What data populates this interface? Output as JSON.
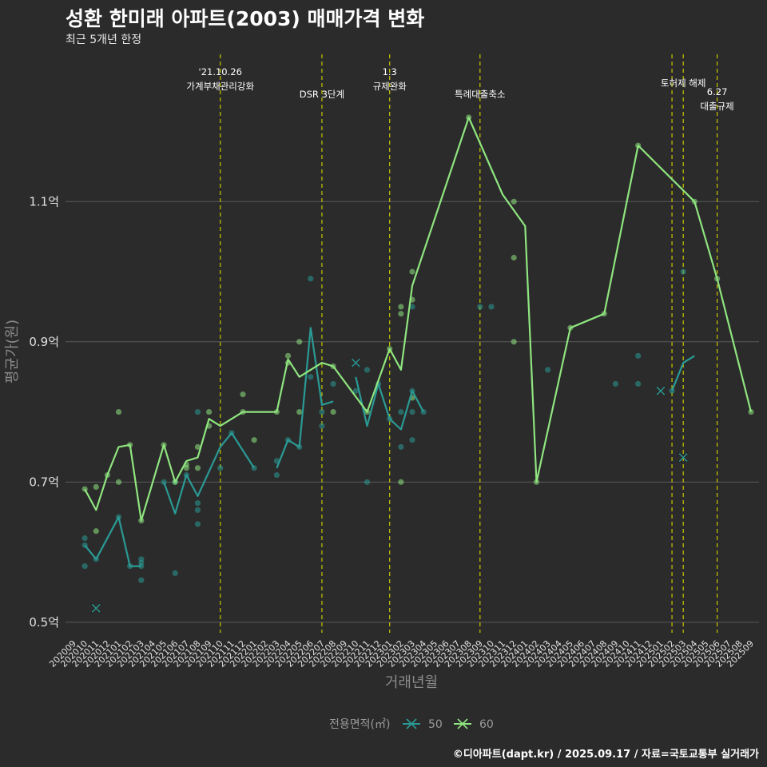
{
  "title": "성환 한미래 아파트(2003) 매매가격 변화",
  "subtitle": "최근 5개년 한정",
  "caption": "©디아파트(dapt.kr) / 2025.09.17 / 자료=국토교통부 실거래가",
  "colors": {
    "background": "#2b2b2b",
    "grid": "#5a5a5a",
    "event_line": "#c8c800",
    "s50": "#2a9a95",
    "s60": "#8fe57f"
  },
  "chart_data": {
    "type": "line",
    "xlabel": "거래년월",
    "ylabel": "평균가(원)",
    "ylim": [
      0.485,
      1.31
    ],
    "y_unit": "억",
    "yticks": [
      0.5,
      0.7,
      0.9,
      1.1
    ],
    "ytick_labels": [
      "0.5억",
      "0.7억",
      "0.9억",
      "1.1억"
    ],
    "x_labels": [
      "202009",
      "202010",
      "202011",
      "202012",
      "202101",
      "202102",
      "202103",
      "202104",
      "202105",
      "202106",
      "202107",
      "202108",
      "202109",
      "202110",
      "202111",
      "202112",
      "202201",
      "202202",
      "202203",
      "202204",
      "202205",
      "202206",
      "202207",
      "202208",
      "202209",
      "202210",
      "202211",
      "202212",
      "202301",
      "202302",
      "202303",
      "202304",
      "202305",
      "202306",
      "202307",
      "202308",
      "202309",
      "202310",
      "202311",
      "202312",
      "202401",
      "202402",
      "202403",
      "202404",
      "202405",
      "202406",
      "202407",
      "202408",
      "202409",
      "202410",
      "202411",
      "202412",
      "202501",
      "202502",
      "202503",
      "202504",
      "202505",
      "202506",
      "202507",
      "202508",
      "202509"
    ],
    "legend": {
      "title": "전용면적(㎡)",
      "position": "bottom"
    },
    "series": [
      {
        "name": "50",
        "color": "#2a9a95",
        "line": [
          [
            "202010",
            0.61
          ],
          [
            "202011",
            0.59
          ],
          [
            "202101",
            0.65
          ],
          [
            "202102",
            0.58
          ],
          [
            "202103",
            0.58
          ],
          null,
          [
            "202105",
            0.7
          ],
          [
            "202106",
            0.655
          ],
          [
            "202107",
            0.71
          ],
          [
            "202108",
            0.68
          ],
          [
            "202110",
            0.75
          ],
          [
            "202111",
            0.77
          ],
          [
            "202201",
            0.72
          ],
          null,
          [
            "202203",
            0.72
          ],
          [
            "202204",
            0.76
          ],
          [
            "202205",
            0.75
          ],
          [
            "202206",
            0.92
          ],
          [
            "202207",
            0.81
          ],
          [
            "202208",
            0.815
          ],
          null,
          [
            "202210",
            0.85
          ],
          [
            "202211",
            0.78
          ],
          [
            "202212",
            0.84
          ],
          [
            "202301",
            0.79
          ],
          [
            "202302",
            0.775
          ],
          [
            "202303",
            0.83
          ],
          [
            "202304",
            0.8
          ],
          null,
          [
            "202502",
            0.83
          ],
          [
            "202503",
            0.87
          ],
          [
            "202504",
            0.88
          ]
        ],
        "points": [
          [
            "202010",
            0.62
          ],
          [
            "202010",
            0.61
          ],
          [
            "202010",
            0.58
          ],
          [
            "202011",
            0.59
          ],
          [
            "202101",
            0.65
          ],
          [
            "202102",
            0.58
          ],
          [
            "202103",
            0.59
          ],
          [
            "202103",
            0.58
          ],
          [
            "202103",
            0.56
          ],
          [
            "202103",
            0.585
          ],
          [
            "202105",
            0.7
          ],
          [
            "202106",
            0.57
          ],
          [
            "202106",
            0.7
          ],
          [
            "202107",
            0.71
          ],
          [
            "202108",
            0.67
          ],
          [
            "202108",
            0.64
          ],
          [
            "202108",
            0.66
          ],
          [
            "202108",
            0.8
          ],
          [
            "202110",
            0.72
          ],
          [
            "202111",
            0.77
          ],
          [
            "202201",
            0.72
          ],
          [
            "202203",
            0.73
          ],
          [
            "202203",
            0.71
          ],
          [
            "202204",
            0.76
          ],
          [
            "202205",
            0.75
          ],
          [
            "202206",
            0.99
          ],
          [
            "202206",
            0.85
          ],
          [
            "202207",
            0.78
          ],
          [
            "202207",
            0.8
          ],
          [
            "202208",
            0.84
          ],
          [
            "202210",
            0.83
          ],
          [
            "202211",
            0.86
          ],
          [
            "202211",
            0.7
          ],
          [
            "202212",
            0.84
          ],
          [
            "202301",
            0.79
          ],
          [
            "202302",
            0.75
          ],
          [
            "202302",
            0.8
          ],
          [
            "202303",
            0.83
          ],
          [
            "202303",
            0.76
          ],
          [
            "202303",
            0.8
          ],
          [
            "202304",
            0.8
          ],
          [
            "202303",
            0.95
          ],
          [
            "202309",
            0.95
          ],
          [
            "202310",
            0.95
          ],
          [
            "202403",
            0.86
          ],
          [
            "202409",
            0.84
          ],
          [
            "202411",
            0.88
          ],
          [
            "202411",
            0.84
          ],
          [
            "202502",
            0.83
          ],
          [
            "202503",
            1.0
          ]
        ],
        "crosses": [
          [
            "202011",
            0.52
          ],
          [
            "202210",
            0.87
          ],
          [
            "202501",
            0.83
          ],
          [
            "202503",
            0.735
          ]
        ]
      },
      {
        "name": "60",
        "color": "#8fe57f",
        "line": [
          [
            "202010",
            0.69
          ],
          [
            "202011",
            0.66
          ],
          [
            "202012",
            0.71
          ],
          [
            "202101",
            0.75
          ],
          [
            "202102",
            0.753
          ],
          [
            "202103",
            0.645
          ],
          [
            "202105",
            0.753
          ],
          [
            "202106",
            0.7
          ],
          [
            "202107",
            0.73
          ],
          [
            "202108",
            0.735
          ],
          [
            "202109",
            0.79
          ],
          [
            "202110",
            0.78
          ],
          [
            "202112",
            0.8
          ],
          [
            "202203",
            0.8
          ],
          [
            "202204",
            0.875
          ],
          [
            "202205",
            0.85
          ],
          [
            "202207",
            0.87
          ],
          [
            "202208",
            0.865
          ],
          [
            "202211",
            0.8
          ],
          [
            "202301",
            0.89
          ],
          [
            "202302",
            0.86
          ],
          [
            "202303",
            0.98
          ],
          [
            "202308",
            1.22
          ],
          [
            "202311",
            1.11
          ],
          [
            "202401",
            1.065
          ],
          [
            "202402",
            0.7
          ],
          [
            "202405",
            0.92
          ],
          [
            "202408",
            0.94
          ],
          [
            "202411",
            1.18
          ],
          [
            "202504",
            1.1
          ],
          [
            "202506",
            0.99
          ],
          [
            "202509",
            0.8
          ]
        ],
        "points": [
          [
            "202010",
            0.69
          ],
          [
            "202011",
            0.693
          ],
          [
            "202011",
            0.63
          ],
          [
            "202012",
            0.71
          ],
          [
            "202101",
            0.8
          ],
          [
            "202101",
            0.7
          ],
          [
            "202102",
            0.753
          ],
          [
            "202103",
            0.645
          ],
          [
            "202105",
            0.753
          ],
          [
            "202106",
            0.7
          ],
          [
            "202107",
            0.725
          ],
          [
            "202107",
            0.72
          ],
          [
            "202108",
            0.72
          ],
          [
            "202108",
            0.75
          ],
          [
            "202109",
            0.8
          ],
          [
            "202109",
            0.78
          ],
          [
            "202112",
            0.825
          ],
          [
            "202112",
            0.8
          ],
          [
            "202201",
            0.76
          ],
          [
            "202203",
            0.8
          ],
          [
            "202204",
            0.87
          ],
          [
            "202204",
            0.88
          ],
          [
            "202205",
            0.9
          ],
          [
            "202205",
            0.8
          ],
          [
            "202208",
            0.8
          ],
          [
            "202208",
            0.865
          ],
          [
            "202211",
            0.8
          ],
          [
            "202301",
            0.89
          ],
          [
            "202302",
            0.95
          ],
          [
            "202302",
            0.94
          ],
          [
            "202302",
            0.7
          ],
          [
            "202303",
            0.96
          ],
          [
            "202303",
            1.0
          ],
          [
            "202303",
            0.82
          ],
          [
            "202308",
            1.22
          ],
          [
            "202312",
            1.1
          ],
          [
            "202312",
            1.02
          ],
          [
            "202312",
            0.9
          ],
          [
            "202402",
            0.7
          ],
          [
            "202405",
            0.92
          ],
          [
            "202408",
            0.94
          ],
          [
            "202411",
            1.18
          ],
          [
            "202504",
            1.1
          ],
          [
            "202506",
            0.99
          ],
          [
            "202509",
            0.8
          ]
        ],
        "crosses": []
      }
    ],
    "events": [
      {
        "x": "202110",
        "lines": [
          "'21.10.26",
          "가계부채관리강화"
        ],
        "row": 0
      },
      {
        "x": "202207",
        "lines": [
          "DSR 3단계"
        ],
        "row": 2
      },
      {
        "x": "202301",
        "lines": [
          "1.3",
          "규제완화"
        ],
        "row": 0
      },
      {
        "x": "202309",
        "lines": [
          "특례대출축소"
        ],
        "row": 2
      },
      {
        "x": "202502",
        "lines": [],
        "row": 0
      },
      {
        "x": "202503",
        "lines": [
          "토허제 해제"
        ],
        "row": 1
      },
      {
        "x": "202506",
        "lines": [
          "6.27",
          "대출규제"
        ],
        "row": 1.8
      }
    ]
  }
}
